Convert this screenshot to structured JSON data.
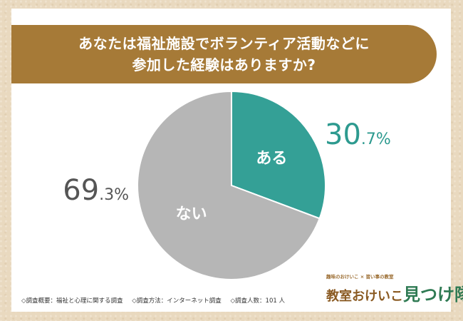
{
  "question": {
    "line1": "あなたは福祉施設でボランティア活動などに",
    "line2": "参加した経験はありますか?"
  },
  "chart_data": {
    "type": "pie",
    "title": "あなたは福祉施設でボランティア活動などに参加した経験はありますか?",
    "start_angle": "12 o'clock",
    "direction": "clockwise",
    "slices": [
      {
        "label": "ある",
        "value": 30.7,
        "value_int": "30",
        "value_dec": ".7%",
        "color": "#34a096",
        "value_color": "#2d9a8f"
      },
      {
        "label": "ない",
        "value": 69.3,
        "value_int": "69",
        "value_dec": ".3%",
        "color": "#b6b6b6",
        "value_color": "#555555"
      }
    ]
  },
  "footer": {
    "overview": "◇調査概要：福祉と心理に関する調査",
    "method": "◇調査方法：インターネット調査",
    "count": "◇調査人数：101 人"
  },
  "logo": {
    "tagline": "趣味のおけいこ × 習い事の教室",
    "name_main": "教室おけいこ",
    "name_accent": "見つけ隊"
  }
}
